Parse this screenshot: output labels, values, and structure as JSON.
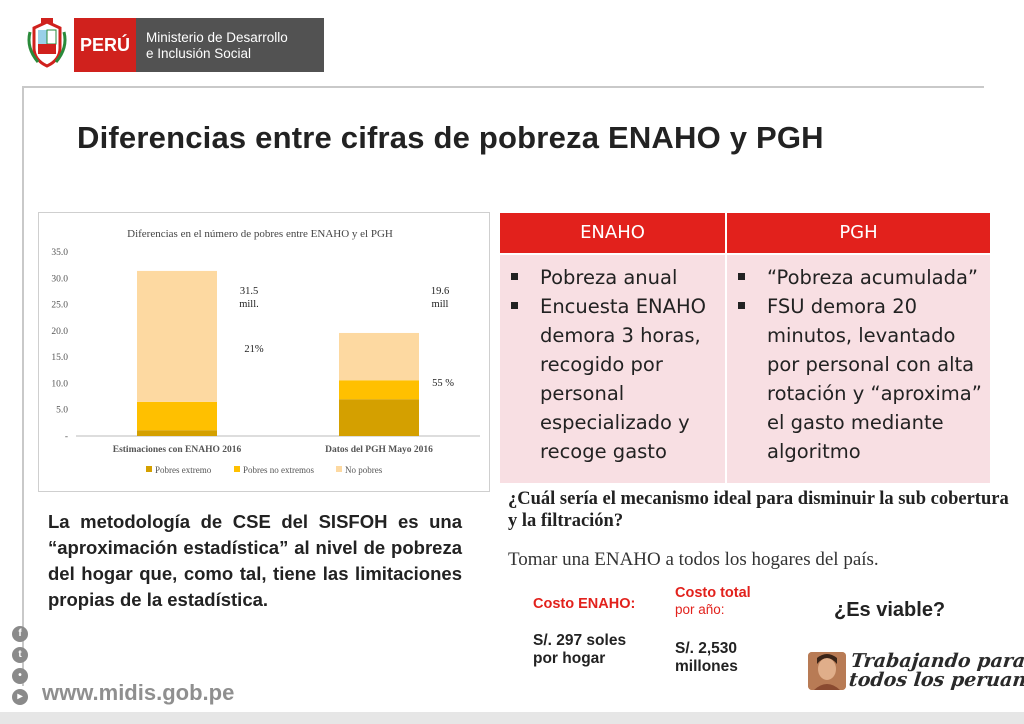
{
  "header": {
    "brand": "PERÚ",
    "ministry_line1": "Ministerio de Desarrollo",
    "ministry_line2": "e Inclusión Social"
  },
  "slide_title": "Diferencias entre cifras de pobreza ENAHO y PGH",
  "chart_data": {
    "type": "bar",
    "stacked": true,
    "title": "Diferencias en el número de pobres entre ENAHO y el PGH",
    "categories": [
      "Estimaciones con ENAHO 2016",
      "Datos del PGH Mayo 2016"
    ],
    "series": [
      {
        "name": "Pobres extremo",
        "values": [
          1.1,
          7.0
        ],
        "color": "#d4a000"
      },
      {
        "name": "Pobres no extremos",
        "values": [
          5.4,
          3.6
        ],
        "color": "#ffc000"
      },
      {
        "name": "No pobres",
        "values": [
          24.9,
          9.0
        ],
        "color": "#fdd9a1"
      }
    ],
    "y_ticks": [
      "-",
      "5.0",
      "10.0",
      "15.0",
      "20.0",
      "25.0",
      "30.0",
      "35.0"
    ],
    "ylim": [
      0,
      35
    ],
    "legend_position": "bottom",
    "annotations": {
      "enaho_total": [
        "31.5",
        "mill."
      ],
      "enaho_pct": "21%",
      "pgh_total": [
        "19.6",
        "mill"
      ],
      "pgh_pct": "55 %"
    }
  },
  "comparison": {
    "enaho": {
      "header": "ENAHO",
      "items": [
        "Pobreza anual",
        "Encuesta ENAHO demora 3 horas, recogido por personal especializado y recoge gasto"
      ]
    },
    "pgh": {
      "header": "PGH",
      "items": [
        "“Pobreza acumulada”",
        "FSU demora 20 minutos, levantado por personal con alta rotación y “aproxima” el gasto mediante algoritmo"
      ]
    }
  },
  "question": "¿Cuál sería el mecanismo ideal para disminuir la sub cobertura y la filtración?",
  "answer": "Tomar una ENAHO a todos los hogares del país.",
  "left_text": "La metodología de CSE del SISFOH es una “aproximación estadística” al nivel de pobreza del hogar que, como tal, tiene las limitaciones propias de la estadística.",
  "costs": {
    "enaho_label": "Costo ENAHO:",
    "enaho_value_line1": "S/. 297 soles",
    "enaho_value_line2": "por hogar",
    "total_label_line1": "Costo total",
    "total_label_line2": "por año:",
    "total_value_line1": "S/. 2,530",
    "total_value_line2": "millones"
  },
  "viable": "¿Es viable?",
  "footer": {
    "website": "www.midis.gob.pe",
    "slogan_line1": "Trabajando para",
    "slogan_line2": "todos los peruanos"
  }
}
